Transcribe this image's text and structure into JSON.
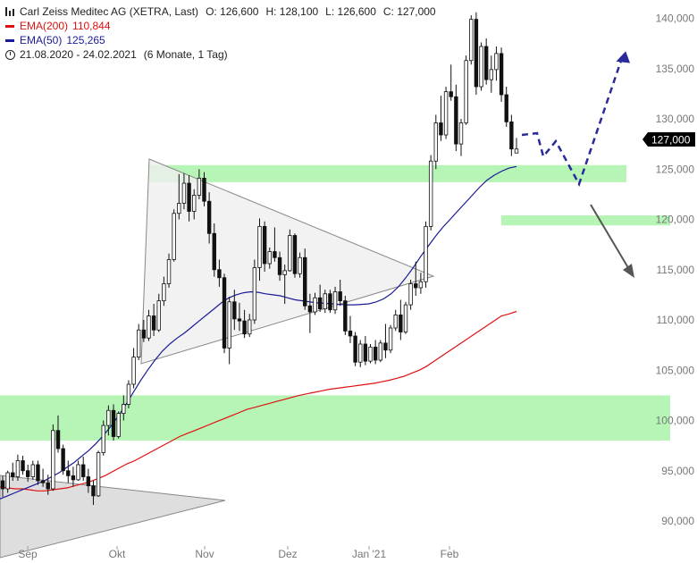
{
  "header": {
    "symbol": "Carl Zeiss Meditec AG (XETRA, Last)",
    "open": "O: 126,600",
    "high": "H: 128,100",
    "low": "L: 126,600",
    "close": "C: 127,000",
    "ema200_label": "EMA(200)",
    "ema200_value": "110,844",
    "ema50_label": "EMA(50)",
    "ema50_value": "125,265",
    "range": "21.08.2020 - 24.02.2021",
    "period": "(6 Monate, 1 Tag)"
  },
  "colors": {
    "ema200": "#dd1111",
    "ema50": "#1a1a99",
    "zone": "#b7f5b7",
    "price_tag": "#000000",
    "forecast_up": "#2a2a9a",
    "forecast_down": "#555555"
  },
  "chart_data": {
    "type": "candlestick",
    "ylim": [
      88000,
      143000
    ],
    "y_ticks": [
      "90,000",
      "95,000",
      "100,000",
      "105,000",
      "110,000",
      "115,000",
      "120,000",
      "125,000",
      "130,000",
      "135,000",
      "140,000"
    ],
    "y_tick_values": [
      90000,
      95000,
      100000,
      105000,
      110000,
      115000,
      120000,
      125000,
      130000,
      135000,
      140000
    ],
    "x_ticks": [
      "Sep",
      "Okt",
      "Nov",
      "Dez",
      "Jan '21",
      "Feb"
    ],
    "last_price_label": "127,000",
    "last_price": 127000,
    "candles": [
      [
        94000,
        94500,
        92400,
        93200
      ],
      [
        93200,
        95000,
        92800,
        94800
      ],
      [
        94800,
        95800,
        94000,
        94400
      ],
      [
        94400,
        96600,
        94000,
        96000
      ],
      [
        96000,
        96500,
        94600,
        95000
      ],
      [
        95000,
        95600,
        93900,
        94400
      ],
      [
        94400,
        96000,
        94100,
        95600
      ],
      [
        95600,
        96000,
        93600,
        94000
      ],
      [
        94000,
        95200,
        93400,
        93800
      ],
      [
        93800,
        94600,
        92600,
        93200
      ],
      [
        93200,
        99600,
        93000,
        99000
      ],
      [
        99000,
        100500,
        96800,
        97200
      ],
      [
        97200,
        97600,
        94600,
        95000
      ],
      [
        95000,
        96000,
        93800,
        94500
      ],
      [
        94500,
        95400,
        93400,
        94100
      ],
      [
        94100,
        96000,
        94000,
        95600
      ],
      [
        95600,
        96400,
        94000,
        94400
      ],
      [
        94400,
        95200,
        92800,
        93500
      ],
      [
        93500,
        94000,
        91600,
        92500
      ],
      [
        92500,
        97000,
        92400,
        96800
      ],
      [
        96800,
        100000,
        96500,
        99500
      ],
      [
        99500,
        101500,
        98500,
        101000
      ],
      [
        101000,
        101600,
        98000,
        98400
      ],
      [
        98400,
        100900,
        98200,
        100700
      ],
      [
        100700,
        102500,
        100000,
        101600
      ],
      [
        101600,
        104000,
        101200,
        103600
      ],
      [
        103600,
        107200,
        103200,
        106300
      ],
      [
        106300,
        109600,
        106000,
        109000
      ],
      [
        109000,
        110000,
        107800,
        108200
      ],
      [
        108200,
        111000,
        107900,
        110400
      ],
      [
        110400,
        111600,
        108400,
        109000
      ],
      [
        109000,
        112600,
        108800,
        111900
      ],
      [
        111900,
        114300,
        111400,
        113600
      ],
      [
        113600,
        116600,
        113200,
        116000
      ],
      [
        116000,
        121000,
        115800,
        120600
      ],
      [
        120600,
        124500,
        120000,
        121600
      ],
      [
        121600,
        124600,
        121000,
        123600
      ],
      [
        123600,
        124400,
        119800,
        120800
      ],
      [
        120800,
        123000,
        120000,
        122400
      ],
      [
        122400,
        125000,
        122000,
        124100
      ],
      [
        124100,
        124700,
        121300,
        121800
      ],
      [
        121800,
        122700,
        117600,
        118600
      ],
      [
        118600,
        119600,
        114300,
        115000
      ],
      [
        115000,
        116000,
        113300,
        114200
      ],
      [
        114200,
        114600,
        106700,
        107200
      ],
      [
        107200,
        112300,
        105600,
        111800
      ],
      [
        111800,
        113000,
        109000,
        110100
      ],
      [
        110100,
        111700,
        108900,
        109900
      ],
      [
        109900,
        111000,
        108200,
        108600
      ],
      [
        108600,
        110600,
        108300,
        110000
      ],
      [
        110000,
        116000,
        109600,
        115200
      ],
      [
        115200,
        120100,
        113900,
        119300
      ],
      [
        119300,
        119800,
        114800,
        115600
      ],
      [
        115600,
        117200,
        115100,
        116800
      ],
      [
        116800,
        119200,
        115800,
        116200
      ],
      [
        116200,
        116800,
        113900,
        114500
      ],
      [
        114500,
        115500,
        111600,
        114900
      ],
      [
        114900,
        119000,
        114800,
        118400
      ],
      [
        118400,
        118600,
        114200,
        114600
      ],
      [
        114600,
        116700,
        114200,
        116200
      ],
      [
        116200,
        117100,
        111000,
        111400
      ],
      [
        111400,
        112600,
        108700,
        110800
      ],
      [
        110800,
        112700,
        110500,
        112200
      ],
      [
        112200,
        113500,
        110800,
        111100
      ],
      [
        111100,
        113000,
        110700,
        112600
      ],
      [
        112600,
        113000,
        110700,
        111000
      ],
      [
        111000,
        113300,
        110600,
        112800
      ],
      [
        112800,
        114000,
        111400,
        111900
      ],
      [
        111900,
        112400,
        108500,
        108900
      ],
      [
        108900,
        110400,
        107700,
        108400
      ],
      [
        108400,
        108800,
        105400,
        105800
      ],
      [
        105800,
        108000,
        105300,
        107600
      ],
      [
        107600,
        108400,
        105500,
        105900
      ],
      [
        105900,
        107600,
        105700,
        107300
      ],
      [
        107300,
        108000,
        105600,
        106000
      ],
      [
        106000,
        108000,
        105800,
        107700
      ],
      [
        107700,
        109600,
        106200,
        107000
      ],
      [
        107000,
        109500,
        106700,
        109200
      ],
      [
        109200,
        111000,
        108900,
        110500
      ],
      [
        110500,
        112000,
        108000,
        108800
      ],
      [
        108800,
        111800,
        108600,
        111500
      ],
      [
        111500,
        114000,
        111000,
        113600
      ],
      [
        113600,
        115800,
        112400,
        113200
      ],
      [
        113200,
        114700,
        112600,
        113800
      ],
      [
        113800,
        119800,
        113200,
        119300
      ],
      [
        119300,
        126400,
        118900,
        125800
      ],
      [
        125800,
        130400,
        125000,
        129600
      ],
      [
        129600,
        132300,
        127800,
        128400
      ],
      [
        128400,
        133200,
        128000,
        132700
      ],
      [
        132700,
        135400,
        131800,
        132200
      ],
      [
        132200,
        133400,
        126800,
        127500
      ],
      [
        127500,
        130000,
        126300,
        129600
      ],
      [
        129600,
        136300,
        129400,
        135800
      ],
      [
        135800,
        140300,
        135400,
        139900
      ],
      [
        139900,
        140600,
        132400,
        133200
      ],
      [
        133200,
        137600,
        132800,
        137200
      ],
      [
        137200,
        138000,
        133400,
        133900
      ],
      [
        133900,
        136300,
        132600,
        134900
      ],
      [
        134900,
        137200,
        133800,
        136500
      ],
      [
        136500,
        137100,
        131700,
        132400
      ],
      [
        132400,
        133200,
        129200,
        129700
      ],
      [
        129700,
        130400,
        126300,
        127000
      ],
      [
        126600,
        128100,
        126600,
        127000
      ]
    ],
    "series": [
      {
        "name": "EMA(200)",
        "values": [
          93400,
          93300,
          93200,
          93200,
          93100,
          93000,
          93000,
          93100,
          93200,
          93300,
          93500,
          93700,
          93900,
          94200,
          94500,
          94900,
          95300,
          95700,
          96000,
          96400,
          96800,
          97200,
          97600,
          98000,
          98400,
          98700,
          99000,
          99300,
          99600,
          99900,
          100200,
          100500,
          100800,
          101100,
          101300,
          101500,
          101700,
          101900,
          102100,
          102300,
          102500,
          102650,
          102800,
          102950,
          103100,
          103200,
          103300,
          103400,
          103500,
          103600,
          103700,
          103850,
          104000,
          104200,
          104400,
          104700,
          105000,
          105400,
          105900,
          106400,
          106900,
          107400,
          107900,
          108400,
          108900,
          109400,
          109900,
          110400,
          110600,
          110844
        ]
      },
      {
        "name": "EMA(50)",
        "values": [
          92200,
          92500,
          92800,
          93100,
          93400,
          93700,
          94000,
          94400,
          94800,
          95300,
          95800,
          96400,
          97000,
          97700,
          98500,
          99400,
          100400,
          101500,
          102700,
          103900,
          105000,
          106000,
          106900,
          107600,
          108200,
          108700,
          109300,
          109900,
          110500,
          111100,
          111700,
          112200,
          112500,
          112700,
          112800,
          112750,
          112600,
          112500,
          112400,
          112200,
          112000,
          111900,
          111800,
          111700,
          111650,
          111600,
          111550,
          111500,
          111500,
          111550,
          111600,
          111800,
          112100,
          112600,
          113300,
          114200,
          115200,
          116300,
          117300,
          118300,
          119200,
          120000,
          120800,
          121600,
          122400,
          123200,
          123900,
          124400,
          124800,
          125100,
          125265
        ]
      }
    ],
    "ema200_x": [
      0,
      570
    ],
    "ema50_x": [
      0,
      570
    ]
  }
}
